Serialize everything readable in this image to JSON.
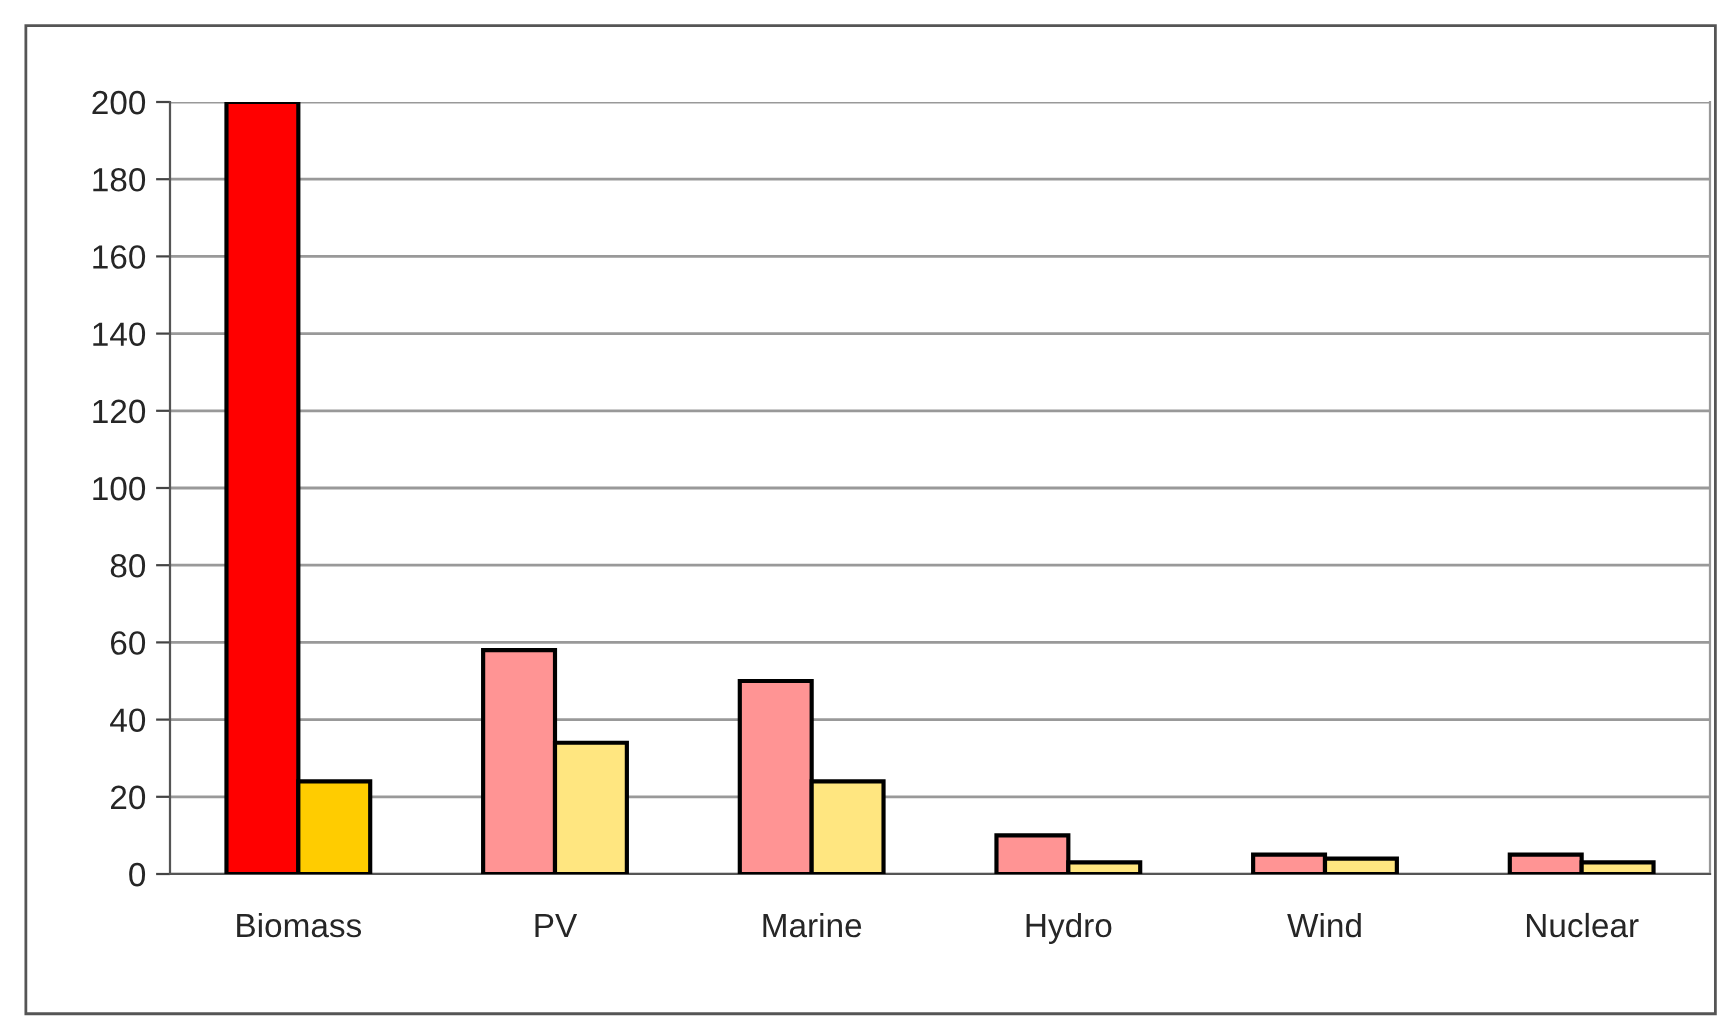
{
  "chart_data": {
    "type": "bar",
    "categories": [
      "Biomass",
      "PV",
      "Marine",
      "Hydro",
      "Wind",
      "Nuclear"
    ],
    "series": [
      {
        "colors": [
          "#ff0000",
          "#ff9494",
          "#ff9494",
          "#ff9494",
          "#ff9494",
          "#ff9494"
        ],
        "values": [
          200,
          58,
          50,
          10,
          5,
          5
        ]
      },
      {
        "colors": [
          "#ffcc00",
          "#ffe680",
          "#ffe680",
          "#ffe680",
          "#ffe680",
          "#ffe680"
        ],
        "values": [
          24,
          34,
          24,
          3,
          4,
          3
        ]
      }
    ],
    "ylim": [
      0,
      200
    ],
    "yticks": [
      0,
      20,
      40,
      60,
      80,
      100,
      120,
      140,
      160,
      180,
      200
    ],
    "grid": "y",
    "legend": false
  }
}
